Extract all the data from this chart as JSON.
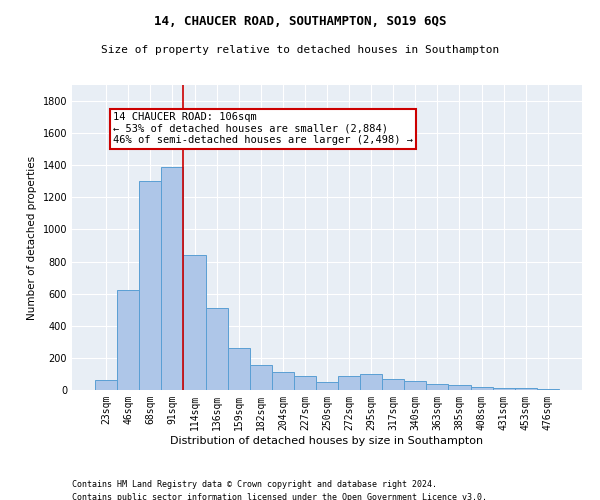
{
  "title": "14, CHAUCER ROAD, SOUTHAMPTON, SO19 6QS",
  "subtitle": "Size of property relative to detached houses in Southampton",
  "xlabel": "Distribution of detached houses by size in Southampton",
  "ylabel": "Number of detached properties",
  "categories": [
    "23sqm",
    "46sqm",
    "68sqm",
    "91sqm",
    "114sqm",
    "136sqm",
    "159sqm",
    "182sqm",
    "204sqm",
    "227sqm",
    "250sqm",
    "272sqm",
    "295sqm",
    "317sqm",
    "340sqm",
    "363sqm",
    "385sqm",
    "408sqm",
    "431sqm",
    "453sqm",
    "476sqm"
  ],
  "values": [
    62,
    620,
    1300,
    1390,
    840,
    510,
    260,
    155,
    110,
    85,
    50,
    90,
    100,
    70,
    55,
    35,
    30,
    20,
    15,
    10,
    8
  ],
  "bar_color": "#aec6e8",
  "bar_edge_color": "#5a9fd4",
  "bg_color": "#e8eef5",
  "annotation_line1": "14 CHAUCER ROAD: 106sqm",
  "annotation_line2": "← 53% of detached houses are smaller (2,884)",
  "annotation_line3": "46% of semi-detached houses are larger (2,498) →",
  "vline_x_index": 3.5,
  "vline_color": "#cc0000",
  "annotation_box_color": "#cc0000",
  "ylim": [
    0,
    1900
  ],
  "yticks": [
    0,
    200,
    400,
    600,
    800,
    1000,
    1200,
    1400,
    1600,
    1800
  ],
  "footer1": "Contains HM Land Registry data © Crown copyright and database right 2024.",
  "footer2": "Contains public sector information licensed under the Open Government Licence v3.0.",
  "title_fontsize": 9,
  "subtitle_fontsize": 8,
  "ylabel_fontsize": 7.5,
  "xlabel_fontsize": 8,
  "tick_fontsize": 7,
  "footer_fontsize": 6,
  "ann_fontsize": 7.5
}
